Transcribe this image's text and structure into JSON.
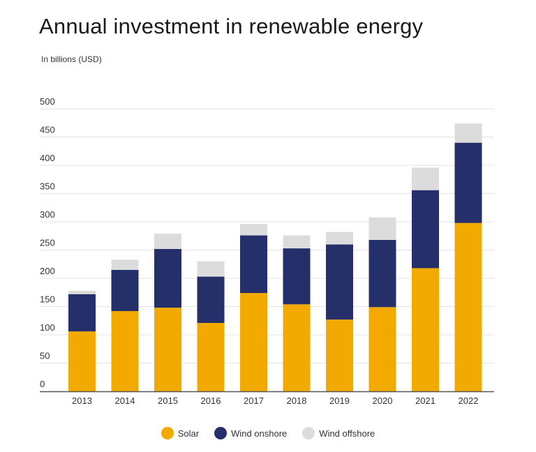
{
  "title": "Annual investment in renewable energy",
  "subtitle": "In billions (USD)",
  "colors": {
    "solar": "#F2A900",
    "wind_onshore": "#25306A",
    "wind_offshore": "#DCDCDC",
    "grid": "#E3E3E3",
    "axis": "#555555",
    "text": "#333333"
  },
  "chart_data": {
    "type": "bar",
    "stacked": true,
    "title": "Annual investment in renewable energy",
    "ylabel": "In billions (USD)",
    "xlabel": "",
    "ylim": [
      0,
      500
    ],
    "yticks": [
      0,
      50,
      100,
      150,
      200,
      250,
      300,
      350,
      400,
      450,
      500
    ],
    "categories": [
      "2013",
      "2014",
      "2015",
      "2016",
      "2017",
      "2018",
      "2019",
      "2020",
      "2021",
      "2022"
    ],
    "series": [
      {
        "name": "Solar",
        "color": "#F2A900",
        "values": [
          106,
          142,
          148,
          121,
          174,
          154,
          127,
          149,
          218,
          298
        ]
      },
      {
        "name": "Wind onshore",
        "color": "#25306A",
        "values": [
          66,
          73,
          104,
          82,
          102,
          99,
          133,
          119,
          138,
          142
        ]
      },
      {
        "name": "Wind offshore",
        "color": "#DCDCDC",
        "values": [
          6,
          18,
          27,
          27,
          20,
          23,
          22,
          40,
          40,
          34
        ]
      }
    ],
    "legend": [
      "Solar",
      "Wind onshore",
      "Wind offshore"
    ],
    "grid": true,
    "legend_position": "bottom-center"
  }
}
